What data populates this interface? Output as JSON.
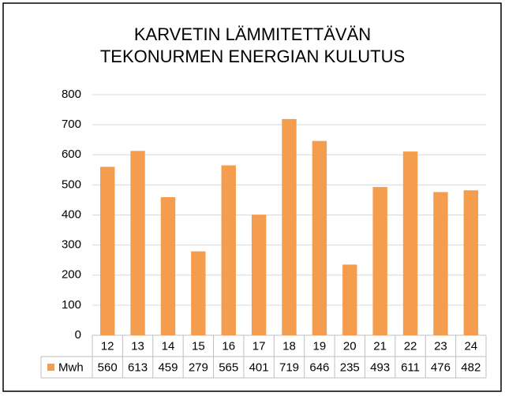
{
  "chart_data": {
    "type": "bar",
    "title": "KARVETIN LÄMMITETTÄVÄN\nTEKONURMEN ENERGIAN KULUTUS",
    "categories": [
      "12",
      "13",
      "14",
      "15",
      "16",
      "17",
      "18",
      "19",
      "20",
      "21",
      "22",
      "23",
      "24"
    ],
    "series": [
      {
        "name": "Mwh",
        "color": "#f59d4f",
        "values": [
          560,
          613,
          459,
          279,
          565,
          401,
          719,
          646,
          235,
          493,
          611,
          476,
          482
        ]
      }
    ],
    "ylim": [
      0,
      800
    ],
    "yticks": [
      0,
      100,
      200,
      300,
      400,
      500,
      600,
      700,
      800
    ],
    "grid": true
  }
}
